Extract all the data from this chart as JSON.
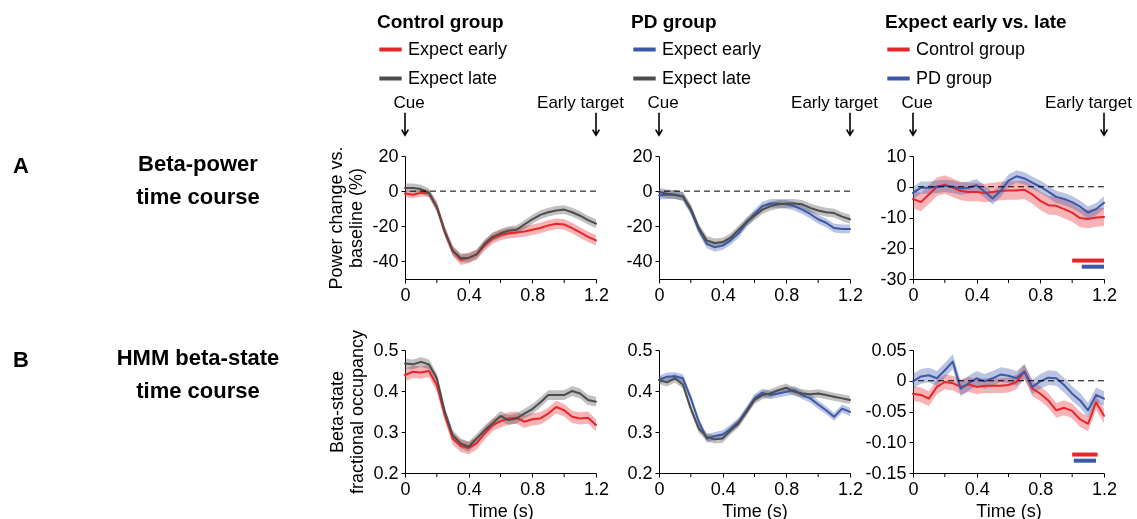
{
  "chart_data": [
    {
      "type": "line",
      "title": "Control group",
      "ylabel": "Power change vs. baseline (%)",
      "legend": "top",
      "xlim": [
        0,
        1.2
      ],
      "ylim": [
        -50,
        20
      ],
      "xticks": [
        0,
        {
          "value": 0.2,
          "label": null
        },
        0.4,
        {
          "value": 0.6,
          "label": null
        },
        0.8,
        {
          "value": 1,
          "label": null
        },
        1.2
      ],
      "yticks": [
        -40,
        -20,
        0,
        20
      ],
      "annotations": [
        "A",
        "Beta-power time course",
        "Cue",
        "Early target"
      ],
      "ref_lines": [
        {
          "axis": "y",
          "value": 0,
          "line_style": "dashed"
        }
      ],
      "x": [
        0,
        0.05,
        0.1,
        0.15,
        0.2,
        0.25,
        0.3,
        0.35,
        0.4,
        0.45,
        0.5,
        0.55,
        0.6,
        0.65,
        0.7,
        0.75,
        0.8,
        0.85,
        0.9,
        0.95,
        1,
        1.05,
        1.1,
        1.15,
        1.2
      ],
      "series": [
        {
          "name": "Expect early",
          "color": "#e8262a",
          "values": [
            -1.4,
            -2.1,
            -1,
            -1,
            -9,
            -23,
            -34,
            -39,
            -38,
            -36,
            -31,
            -27,
            -25,
            -24,
            -23.5,
            -23,
            -22,
            -21,
            -19.5,
            -18.5,
            -19,
            -21,
            -23.5,
            -26,
            -28
          ],
          "lower": [
            -3.4,
            -4.1,
            -3,
            -3,
            -12,
            -26,
            -37,
            -42,
            -41,
            -39,
            -34,
            -30,
            -28,
            -27,
            -26.5,
            -26,
            -25,
            -24,
            -22.5,
            -21.5,
            -22,
            -24,
            -26.5,
            -29,
            -31
          ],
          "upper": [
            0.6,
            -0.1,
            1,
            1,
            -6,
            -20,
            -31,
            -36,
            -35,
            -33,
            -28,
            -24,
            -22,
            -21,
            -20.5,
            -20,
            -19,
            -18,
            -16.5,
            -15.5,
            -16,
            -18,
            -20.5,
            -23,
            -25
          ]
        },
        {
          "name": "Expect late",
          "color": "#4d4d4d",
          "values": [
            1.8,
            1.8,
            1.2,
            -1,
            -9,
            -23,
            -34,
            -38,
            -38,
            -36,
            -30,
            -26,
            -24,
            -22.5,
            -22,
            -19,
            -16,
            -13.5,
            -12,
            -11,
            -10.5,
            -12,
            -14,
            -16.5,
            -18.5
          ],
          "lower": [
            -0.7,
            -0.7,
            -1.3,
            -3.5,
            -11.5,
            -25.5,
            -36.5,
            -40.5,
            -40.5,
            -38.5,
            -32.5,
            -28.5,
            -26.5,
            -25,
            -24.5,
            -21.5,
            -18.5,
            -16,
            -14.5,
            -13.5,
            -13,
            -14.5,
            -16.5,
            -19,
            -21
          ],
          "upper": [
            4.3,
            4.3,
            3.7,
            1.5,
            -6.5,
            -20.5,
            -31.5,
            -35.5,
            -35.5,
            -33.5,
            -27.5,
            -23.5,
            -21.5,
            -20,
            -19.5,
            -16.5,
            -13.5,
            -11,
            -9.5,
            -8.5,
            -8,
            -9.5,
            -11.5,
            -14,
            -16
          ]
        }
      ]
    },
    {
      "type": "line",
      "title": "PD group",
      "legend": "top",
      "xlim": [
        0,
        1.2
      ],
      "ylim": [
        -50,
        20
      ],
      "xticks": [
        0,
        {
          "value": 0.2,
          "label": null
        },
        0.4,
        {
          "value": 0.6,
          "label": null
        },
        0.8,
        {
          "value": 1,
          "label": null
        },
        1.2
      ],
      "yticks": [
        -40,
        -20,
        0,
        20
      ],
      "annotations": [
        "Cue",
        "Early target"
      ],
      "ref_lines": [
        {
          "axis": "y",
          "value": 0,
          "line_style": "dashed"
        }
      ],
      "x": [
        0,
        0.05,
        0.1,
        0.15,
        0.2,
        0.25,
        0.3,
        0.35,
        0.4,
        0.45,
        0.5,
        0.55,
        0.6,
        0.65,
        0.7,
        0.75,
        0.8,
        0.85,
        0.9,
        0.95,
        1,
        1.05,
        1.1,
        1.15,
        1.2
      ],
      "series": [
        {
          "name": "Expect early",
          "color": "#3c58a8",
          "values": [
            -2.3,
            -2,
            -2,
            -3,
            -11,
            -22,
            -30,
            -32,
            -31,
            -28,
            -24,
            -18,
            -13,
            -8.5,
            -7,
            -7,
            -7.5,
            -8.5,
            -10.5,
            -13,
            -16,
            -18,
            -21,
            -21.5,
            -21.5
          ],
          "lower": [
            -4.8,
            -4.5,
            -4.5,
            -5.5,
            -13.5,
            -24.5,
            -32.5,
            -34.5,
            -33.5,
            -30.5,
            -26.5,
            -20.5,
            -15.5,
            -11,
            -9.5,
            -9.5,
            -10,
            -11,
            -13,
            -15.5,
            -18.5,
            -20.5,
            -23.5,
            -24,
            -24
          ],
          "upper": [
            0.2,
            0.5,
            0.5,
            -0.5,
            -8.5,
            -19.5,
            -27.5,
            -29.5,
            -28.5,
            -25.5,
            -21.5,
            -15.5,
            -10.5,
            -6,
            -4.5,
            -4.5,
            -5,
            -6,
            -8,
            -10.5,
            -13.5,
            -15.5,
            -18.5,
            -19,
            -19
          ]
        },
        {
          "name": "Expect late",
          "color": "#4d4d4d",
          "values": [
            -0.5,
            -1.5,
            -2,
            -3,
            -10,
            -21,
            -28,
            -29.5,
            -29,
            -26.5,
            -22,
            -17.5,
            -14,
            -10.5,
            -8.5,
            -7.5,
            -7,
            -7,
            -7.5,
            -9.5,
            -11,
            -12,
            -12.5,
            -14.5,
            -16
          ],
          "lower": [
            -3,
            -4,
            -4.5,
            -5.5,
            -12.5,
            -23.5,
            -30.5,
            -32,
            -31.5,
            -29,
            -24.5,
            -20,
            -16.5,
            -13,
            -11,
            -10,
            -9.5,
            -9.5,
            -10,
            -12,
            -13.5,
            -14.5,
            -15,
            -17,
            -18.5
          ],
          "upper": [
            2,
            1,
            0.5,
            -0.5,
            -7.5,
            -18.5,
            -25.5,
            -27,
            -26.5,
            -24,
            -19.5,
            -15,
            -11.5,
            -8,
            -6,
            -5,
            -4.5,
            -4.5,
            -5,
            -7,
            -8.5,
            -9.5,
            -10,
            -12,
            -13.5
          ]
        }
      ]
    },
    {
      "type": "line",
      "title": "Expect early vs. late",
      "legend": "top",
      "xlim": [
        0,
        1.2
      ],
      "ylim": [
        -30,
        10
      ],
      "xticks": [
        0,
        {
          "value": 0.2,
          "label": null
        },
        0.4,
        {
          "value": 0.6,
          "label": null
        },
        0.8,
        {
          "value": 1,
          "label": null
        },
        1.2
      ],
      "yticks": [
        -30,
        -20,
        -10,
        0,
        10
      ],
      "annotations": [
        "Cue",
        "Early target"
      ],
      "ref_lines": [
        {
          "axis": "y",
          "value": 0,
          "line_style": "dashed"
        }
      ],
      "x": [
        0,
        0.05,
        0.1,
        0.15,
        0.2,
        0.25,
        0.3,
        0.35,
        0.4,
        0.45,
        0.5,
        0.55,
        0.6,
        0.65,
        0.7,
        0.75,
        0.8,
        0.85,
        0.9,
        0.95,
        1,
        1.05,
        1.1,
        1.15,
        1.2
      ],
      "series": [
        {
          "name": "Control group",
          "color": "#e8262a",
          "values": [
            -4,
            -5,
            -2.5,
            0,
            0.7,
            -0.3,
            -1.4,
            -1.7,
            -1.7,
            -2,
            -1.7,
            -1.4,
            -1.2,
            -1.2,
            -1,
            -2.5,
            -4.6,
            -6,
            -6.2,
            -7.3,
            -8.4,
            -10.2,
            -10.5,
            -10,
            -9.8
          ],
          "lower": [
            -7,
            -8,
            -5.5,
            -3,
            -2.3,
            -3.3,
            -4.4,
            -4.7,
            -4.7,
            -5,
            -4.7,
            -4.4,
            -4.2,
            -4.2,
            -4,
            -5.5,
            -7.6,
            -9,
            -9.2,
            -10.3,
            -11.4,
            -13.2,
            -13.5,
            -13,
            -12.8
          ],
          "upper": [
            -1,
            -2,
            0.5,
            3,
            3.7,
            2.7,
            1.6,
            1.3,
            1.3,
            1,
            1.3,
            1.6,
            1.8,
            1.8,
            2,
            0.5,
            -1.6,
            -3,
            -3.2,
            -4.3,
            -5.4,
            -7.2,
            -7.5,
            -7,
            -6.8
          ]
        },
        {
          "name": "PD group",
          "color": "#3c58a8",
          "values": [
            -2,
            -0.3,
            -0.3,
            0,
            0.3,
            0,
            -0.6,
            -0.3,
            0.5,
            -1.6,
            -3.8,
            -1.4,
            2,
            3.4,
            2.7,
            1.3,
            0,
            -1.6,
            -3.3,
            -4,
            -5,
            -6.5,
            -8.4,
            -7.3,
            -5.2
          ],
          "lower": [
            -4,
            -2.3,
            -2.3,
            -2,
            -1.7,
            -2,
            -2.6,
            -2.3,
            -1.5,
            -3.6,
            -5.8,
            -3.4,
            0,
            1.4,
            0.7,
            -0.7,
            -2,
            -3.6,
            -5.3,
            -6,
            -7,
            -8.5,
            -10.4,
            -9.3,
            -7.2
          ],
          "upper": [
            0,
            1.7,
            1.7,
            2,
            2.3,
            2,
            1.4,
            1.7,
            2.5,
            0.4,
            -1.8,
            0.6,
            4,
            5.4,
            4.7,
            3.3,
            2,
            0.4,
            -1.3,
            -2,
            -3,
            -4.5,
            -6.4,
            -5.3,
            -3.2
          ]
        },
        {
          "type": "line",
          "color": "#e8262a",
          "x": [
            1,
            1.2
          ],
          "values": [
            -24,
            -24
          ]
        },
        {
          "type": "line",
          "color": "#3c58a8",
          "x": [
            1.06,
            1.2
          ],
          "values": [
            -26,
            -26
          ]
        }
      ]
    },
    {
      "type": "line",
      "xlabel": "Time (s)",
      "ylabel": "Beta-state fractional occupancy",
      "xlim": [
        0,
        1.2
      ],
      "ylim": [
        0.2,
        0.5
      ],
      "xticks": [
        0,
        {
          "value": 0.2,
          "label": null
        },
        0.4,
        {
          "value": 0.6,
          "label": null
        },
        0.8,
        {
          "value": 1,
          "label": null
        },
        1.2
      ],
      "yticks": [
        0.2,
        0.3,
        0.4,
        0.5
      ],
      "annotations": [
        "B",
        "HMM beta-state time course"
      ],
      "x": [
        0,
        0.05,
        0.1,
        0.15,
        0.2,
        0.25,
        0.3,
        0.35,
        0.4,
        0.45,
        0.5,
        0.55,
        0.6,
        0.65,
        0.7,
        0.75,
        0.8,
        0.85,
        0.9,
        0.95,
        1,
        1.05,
        1.1,
        1.15,
        1.2
      ],
      "series": [
        {
          "color": "#e8262a",
          "values": [
            0.439,
            0.447,
            0.445,
            0.449,
            0.414,
            0.341,
            0.284,
            0.266,
            0.261,
            0.272,
            0.296,
            0.317,
            0.326,
            0.333,
            0.335,
            0.325,
            0.331,
            0.333,
            0.345,
            0.361,
            0.353,
            0.337,
            0.333,
            0.335,
            0.317
          ],
          "lower": [
            0.424,
            0.432,
            0.43,
            0.434,
            0.399,
            0.326,
            0.269,
            0.251,
            0.246,
            0.257,
            0.281,
            0.302,
            0.311,
            0.318,
            0.32,
            0.31,
            0.316,
            0.318,
            0.33,
            0.346,
            0.338,
            0.322,
            0.318,
            0.32,
            0.302
          ],
          "upper": [
            0.454,
            0.462,
            0.46,
            0.464,
            0.429,
            0.356,
            0.299,
            0.281,
            0.276,
            0.287,
            0.311,
            0.332,
            0.341,
            0.348,
            0.35,
            0.34,
            0.346,
            0.348,
            0.36,
            0.376,
            0.368,
            0.352,
            0.348,
            0.35,
            0.332
          ]
        },
        {
          "color": "#4d4d4d",
          "values": [
            0.467,
            0.465,
            0.471,
            0.465,
            0.431,
            0.349,
            0.292,
            0.272,
            0.264,
            0.284,
            0.304,
            0.321,
            0.339,
            0.329,
            0.333,
            0.345,
            0.356,
            0.372,
            0.39,
            0.39,
            0.39,
            0.4,
            0.394,
            0.378,
            0.374
          ],
          "lower": [
            0.455,
            0.453,
            0.459,
            0.453,
            0.419,
            0.337,
            0.28,
            0.26,
            0.252,
            0.272,
            0.292,
            0.309,
            0.327,
            0.317,
            0.321,
            0.333,
            0.344,
            0.36,
            0.378,
            0.378,
            0.378,
            0.388,
            0.382,
            0.366,
            0.362
          ],
          "upper": [
            0.479,
            0.477,
            0.483,
            0.477,
            0.443,
            0.361,
            0.304,
            0.284,
            0.276,
            0.296,
            0.316,
            0.333,
            0.351,
            0.341,
            0.345,
            0.357,
            0.368,
            0.384,
            0.402,
            0.402,
            0.402,
            0.412,
            0.406,
            0.39,
            0.386
          ]
        }
      ]
    },
    {
      "type": "line",
      "xlabel": "Time (s)",
      "xlim": [
        0,
        1.2
      ],
      "ylim": [
        0.2,
        0.5
      ],
      "xticks": [
        0,
        {
          "value": 0.2,
          "label": null
        },
        0.4,
        {
          "value": 0.6,
          "label": null
        },
        0.8,
        {
          "value": 1,
          "label": null
        },
        1.2
      ],
      "yticks": [
        0.2,
        0.3,
        0.4,
        0.5
      ],
      "x": [
        0,
        0.05,
        0.1,
        0.15,
        0.2,
        0.25,
        0.3,
        0.35,
        0.4,
        0.45,
        0.5,
        0.55,
        0.6,
        0.65,
        0.7,
        0.75,
        0.8,
        0.85,
        0.9,
        0.95,
        1,
        1.05,
        1.1,
        1.15,
        1.2
      ],
      "series": [
        {
          "color": "#3c58a8",
          "values": [
            0.427,
            0.435,
            0.436,
            0.431,
            0.382,
            0.325,
            0.284,
            0.29,
            0.294,
            0.308,
            0.325,
            0.353,
            0.382,
            0.396,
            0.39,
            0.394,
            0.398,
            0.402,
            0.39,
            0.382,
            0.367,
            0.353,
            0.337,
            0.357,
            0.349
          ],
          "lower": [
            0.417,
            0.425,
            0.426,
            0.421,
            0.372,
            0.315,
            0.274,
            0.28,
            0.284,
            0.298,
            0.315,
            0.343,
            0.372,
            0.386,
            0.38,
            0.384,
            0.388,
            0.392,
            0.38,
            0.372,
            0.357,
            0.343,
            0.327,
            0.347,
            0.339
          ],
          "upper": [
            0.437,
            0.445,
            0.446,
            0.441,
            0.392,
            0.335,
            0.294,
            0.3,
            0.304,
            0.318,
            0.335,
            0.363,
            0.392,
            0.406,
            0.4,
            0.404,
            0.408,
            0.412,
            0.4,
            0.392,
            0.377,
            0.363,
            0.347,
            0.367,
            0.359
          ]
        },
        {
          "color": "#4d4d4d",
          "values": [
            0.427,
            0.421,
            0.431,
            0.416,
            0.357,
            0.308,
            0.288,
            0.282,
            0.284,
            0.304,
            0.321,
            0.349,
            0.378,
            0.39,
            0.394,
            0.402,
            0.408,
            0.398,
            0.394,
            0.392,
            0.394,
            0.39,
            0.386,
            0.382,
            0.378
          ],
          "lower": [
            0.417,
            0.411,
            0.421,
            0.406,
            0.347,
            0.298,
            0.278,
            0.272,
            0.274,
            0.294,
            0.311,
            0.339,
            0.368,
            0.38,
            0.384,
            0.392,
            0.398,
            0.388,
            0.384,
            0.382,
            0.384,
            0.38,
            0.376,
            0.372,
            0.368
          ],
          "upper": [
            0.437,
            0.431,
            0.441,
            0.426,
            0.367,
            0.318,
            0.298,
            0.292,
            0.294,
            0.314,
            0.331,
            0.359,
            0.388,
            0.4,
            0.404,
            0.412,
            0.418,
            0.408,
            0.404,
            0.402,
            0.404,
            0.4,
            0.396,
            0.392,
            0.388
          ]
        }
      ]
    },
    {
      "type": "line",
      "xlabel": "Time (s)",
      "xlim": [
        0,
        1.2
      ],
      "ylim": [
        -0.15,
        0.05
      ],
      "xticks": [
        0,
        {
          "value": 0.2,
          "label": null
        },
        0.4,
        {
          "value": 0.6,
          "label": null
        },
        0.8,
        {
          "value": 1,
          "label": null
        },
        1.2
      ],
      "yticks": [
        -0.15,
        {
          "value": -0.1,
          "label": "-0.10"
        },
        -0.05,
        0,
        0.05
      ],
      "ref_lines": [
        {
          "axis": "y",
          "value": 0,
          "line_style": "dashed"
        }
      ],
      "x": [
        0,
        0.05,
        0.1,
        0.15,
        0.2,
        0.25,
        0.3,
        0.35,
        0.4,
        0.45,
        0.5,
        0.55,
        0.6,
        0.65,
        0.7,
        0.75,
        0.8,
        0.85,
        0.9,
        0.95,
        1,
        1.05,
        1.1,
        1.15,
        1.2
      ],
      "series": [
        {
          "color": "#e8262a",
          "values": [
            -0.021,
            -0.023,
            -0.029,
            -0.01,
            -0.002,
            -0.004,
            -0.01,
            -0.006,
            -0.01,
            -0.008,
            -0.008,
            -0.008,
            -0.007,
            -0.002,
            0.015,
            -0.013,
            -0.021,
            -0.032,
            -0.048,
            -0.044,
            -0.049,
            -0.063,
            -0.07,
            -0.035,
            -0.057
          ],
          "lower": [
            -0.033,
            -0.035,
            -0.041,
            -0.022,
            -0.014,
            -0.016,
            -0.022,
            -0.018,
            -0.022,
            -0.02,
            -0.02,
            -0.02,
            -0.019,
            -0.014,
            0.003,
            -0.025,
            -0.033,
            -0.044,
            -0.06,
            -0.056,
            -0.061,
            -0.075,
            -0.082,
            -0.047,
            -0.069
          ],
          "upper": [
            -0.009,
            -0.011,
            -0.017,
            0.002,
            0.01,
            0.008,
            0.002,
            0.006,
            0.002,
            0.004,
            0.004,
            0.004,
            0.005,
            0.01,
            0.027,
            -0.001,
            -0.009,
            -0.02,
            -0.036,
            -0.032,
            -0.037,
            -0.051,
            -0.058,
            -0.023,
            -0.045
          ]
        },
        {
          "color": "#3c58a8",
          "values": [
            -0.001,
            0.007,
            0.009,
            0.004,
            0.017,
            0.031,
            -0.013,
            -0.004,
            0.004,
            -0.001,
            0.004,
            0.01,
            0.008,
            0.004,
            0.015,
            -0.01,
            -0.001,
            0.005,
            0.004,
            -0.007,
            -0.021,
            -0.032,
            -0.048,
            -0.023,
            -0.029
          ],
          "lower": [
            -0.013,
            -0.005,
            -0.003,
            -0.008,
            0.005,
            0.019,
            -0.025,
            -0.016,
            -0.008,
            -0.013,
            -0.008,
            -0.002,
            -0.004,
            -0.008,
            0.003,
            -0.022,
            -0.013,
            -0.007,
            -0.008,
            -0.019,
            -0.033,
            -0.044,
            -0.06,
            -0.035,
            -0.041
          ],
          "upper": [
            0.011,
            0.019,
            0.021,
            0.016,
            0.029,
            0.043,
            -0.001,
            0.008,
            0.016,
            0.011,
            0.016,
            0.022,
            0.02,
            0.016,
            0.027,
            0.002,
            0.011,
            0.017,
            0.016,
            0.005,
            -0.009,
            -0.02,
            -0.036,
            -0.011,
            -0.017
          ]
        },
        {
          "type": "line",
          "color": "#e8262a",
          "x": [
            1,
            1.16
          ],
          "values": [
            -0.12,
            -0.12
          ]
        },
        {
          "type": "line",
          "color": "#3c58a8",
          "x": [
            1.01,
            1.15
          ],
          "values": [
            -0.13,
            -0.13
          ]
        }
      ]
    }
  ]
}
